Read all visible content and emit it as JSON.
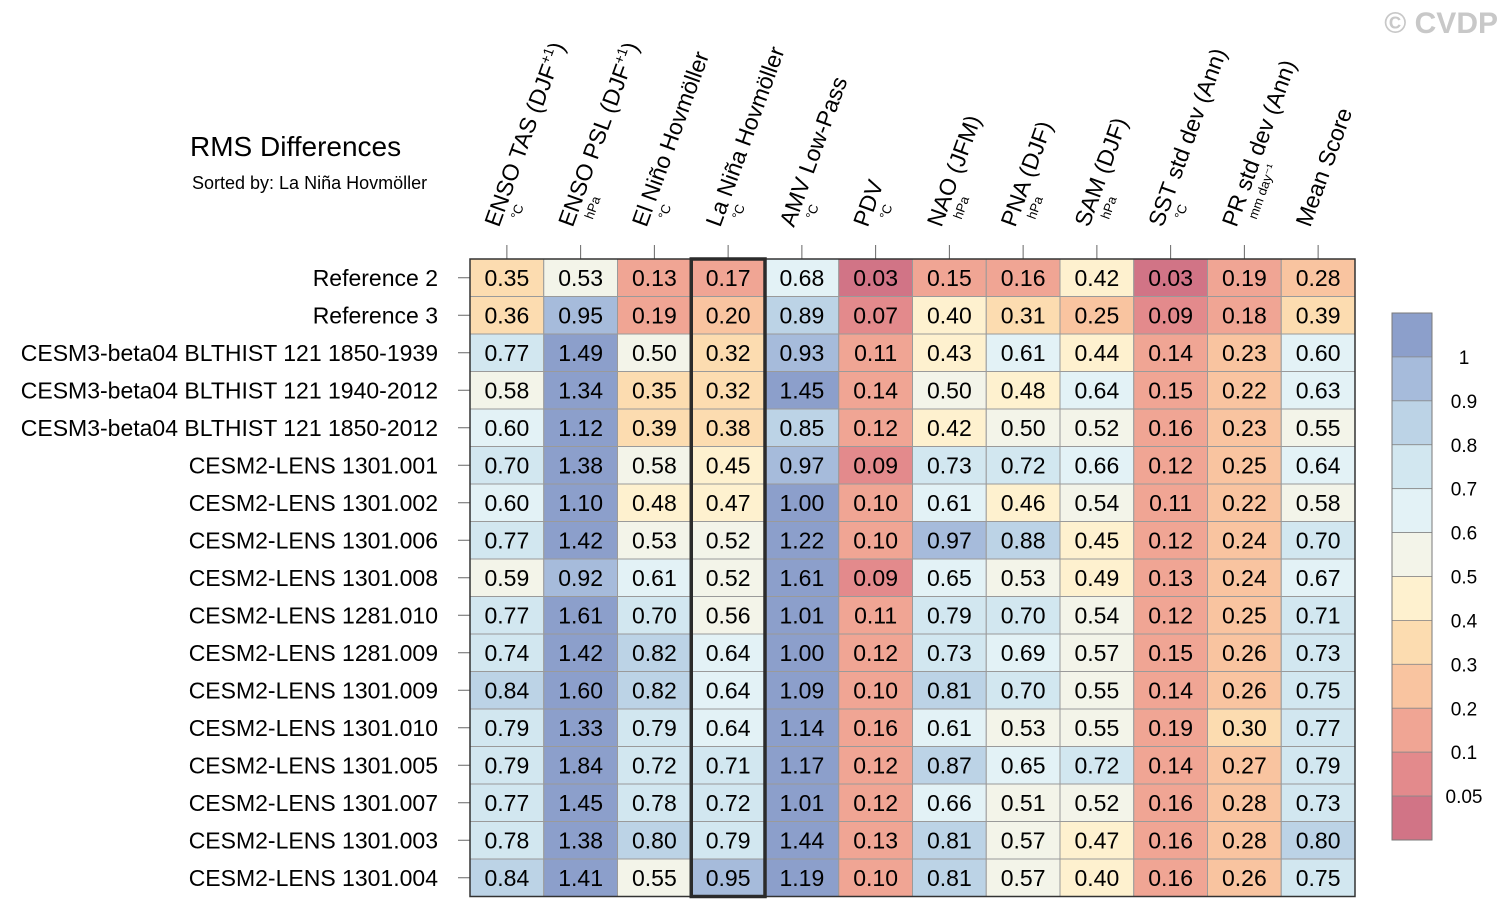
{
  "watermark": "© CVDP",
  "chart_data": {
    "type": "heatmap",
    "title": "RMS Differences",
    "subtitle": "Sorted by: La Niña Hovmöller",
    "highlight_column": 3,
    "columns": [
      {
        "name": "ENSO TAS (DJF",
        "sup": "+1",
        "close": ")",
        "unit": "°C"
      },
      {
        "name": "ENSO PSL (DJF",
        "sup": "+1",
        "close": ")",
        "unit": "hPa"
      },
      {
        "name": "El Niño Hovmöller",
        "sup": "",
        "close": "",
        "unit": "°C"
      },
      {
        "name": "La Niña Hovmöller",
        "sup": "",
        "close": "",
        "unit": "°C"
      },
      {
        "name": "AMV Low-Pass",
        "sup": "",
        "close": "",
        "unit": "°C"
      },
      {
        "name": "PDV",
        "sup": "",
        "close": "",
        "unit": "°C"
      },
      {
        "name": "NAO (JFM)",
        "sup": "",
        "close": "",
        "unit": "hPa"
      },
      {
        "name": "PNA (DJF)",
        "sup": "",
        "close": "",
        "unit": "hPa"
      },
      {
        "name": "SAM (DJF)",
        "sup": "",
        "close": "",
        "unit": "hPa"
      },
      {
        "name": "SST std dev (Ann)",
        "sup": "",
        "close": "",
        "unit": "°C"
      },
      {
        "name": "PR std dev (Ann)",
        "sup": "",
        "close": "",
        "unit": "mm day⁻¹"
      },
      {
        "name": "Mean Score",
        "sup": "",
        "close": "",
        "unit": ""
      }
    ],
    "rows": [
      {
        "label": "Reference 2",
        "values": [
          0.35,
          0.53,
          0.13,
          0.17,
          0.68,
          0.03,
          0.15,
          0.16,
          0.42,
          0.03,
          0.19,
          0.28
        ]
      },
      {
        "label": "Reference 3",
        "values": [
          0.36,
          0.95,
          0.19,
          0.2,
          0.89,
          0.07,
          0.4,
          0.31,
          0.25,
          0.09,
          0.18,
          0.39
        ]
      },
      {
        "label": "CESM3-beta04 BLTHIST 121 1850-1939",
        "values": [
          0.77,
          1.49,
          0.5,
          0.32,
          0.93,
          0.11,
          0.43,
          0.61,
          0.44,
          0.14,
          0.23,
          0.6
        ]
      },
      {
        "label": "CESM3-beta04 BLTHIST 121 1940-2012",
        "values": [
          0.58,
          1.34,
          0.35,
          0.32,
          1.45,
          0.14,
          0.5,
          0.48,
          0.64,
          0.15,
          0.22,
          0.63
        ]
      },
      {
        "label": "CESM3-beta04 BLTHIST 121 1850-2012",
        "values": [
          0.6,
          1.12,
          0.39,
          0.38,
          0.85,
          0.12,
          0.42,
          0.5,
          0.52,
          0.16,
          0.23,
          0.55
        ]
      },
      {
        "label": "CESM2-LENS 1301.001",
        "values": [
          0.7,
          1.38,
          0.58,
          0.45,
          0.97,
          0.09,
          0.73,
          0.72,
          0.66,
          0.12,
          0.25,
          0.64
        ]
      },
      {
        "label": "CESM2-LENS 1301.002",
        "values": [
          0.6,
          1.1,
          0.48,
          0.47,
          1.0,
          0.1,
          0.61,
          0.46,
          0.54,
          0.11,
          0.22,
          0.58
        ]
      },
      {
        "label": "CESM2-LENS 1301.006",
        "values": [
          0.77,
          1.42,
          0.53,
          0.52,
          1.22,
          0.1,
          0.97,
          0.88,
          0.45,
          0.12,
          0.24,
          0.7
        ]
      },
      {
        "label": "CESM2-LENS 1301.008",
        "values": [
          0.59,
          0.92,
          0.61,
          0.52,
          1.61,
          0.09,
          0.65,
          0.53,
          0.49,
          0.13,
          0.24,
          0.67
        ]
      },
      {
        "label": "CESM2-LENS 1281.010",
        "values": [
          0.77,
          1.61,
          0.7,
          0.56,
          1.01,
          0.11,
          0.79,
          0.7,
          0.54,
          0.12,
          0.25,
          0.71
        ]
      },
      {
        "label": "CESM2-LENS 1281.009",
        "values": [
          0.74,
          1.42,
          0.82,
          0.64,
          1.0,
          0.12,
          0.73,
          0.69,
          0.57,
          0.15,
          0.26,
          0.73
        ]
      },
      {
        "label": "CESM2-LENS 1301.009",
        "values": [
          0.84,
          1.6,
          0.82,
          0.64,
          1.09,
          0.1,
          0.81,
          0.7,
          0.55,
          0.14,
          0.26,
          0.75
        ]
      },
      {
        "label": "CESM2-LENS 1301.010",
        "values": [
          0.79,
          1.33,
          0.79,
          0.64,
          1.14,
          0.16,
          0.61,
          0.53,
          0.55,
          0.19,
          0.3,
          0.77
        ]
      },
      {
        "label": "CESM2-LENS 1301.005",
        "values": [
          0.79,
          1.84,
          0.72,
          0.71,
          1.17,
          0.12,
          0.87,
          0.65,
          0.72,
          0.14,
          0.27,
          0.79
        ]
      },
      {
        "label": "CESM2-LENS 1301.007",
        "values": [
          0.77,
          1.45,
          0.78,
          0.72,
          1.01,
          0.12,
          0.66,
          0.51,
          0.52,
          0.16,
          0.28,
          0.73
        ]
      },
      {
        "label": "CESM2-LENS 1301.003",
        "values": [
          0.78,
          1.38,
          0.8,
          0.79,
          1.44,
          0.13,
          0.81,
          0.57,
          0.47,
          0.16,
          0.28,
          0.8
        ]
      },
      {
        "label": "CESM2-LENS 1301.004",
        "values": [
          0.84,
          1.41,
          0.55,
          0.95,
          1.19,
          0.1,
          0.81,
          0.57,
          0.4,
          0.16,
          0.26,
          0.75
        ]
      }
    ],
    "colorbar": {
      "ticks": [
        "1",
        "0.9",
        "0.8",
        "0.7",
        "0.6",
        "0.5",
        "0.4",
        "0.3",
        "0.2",
        "0.1",
        "0.05"
      ],
      "thresholds": [
        1.0,
        0.9,
        0.8,
        0.7,
        0.6,
        0.5,
        0.4,
        0.3,
        0.2,
        0.1,
        0.05
      ],
      "colors": [
        "#8c9fcb",
        "#a6bbdb",
        "#bcd3e6",
        "#d2e7f0",
        "#e3f2f6",
        "#f3f4e9",
        "#fef1cf",
        "#fcdcb0",
        "#f9c4a0",
        "#f0a594",
        "#e38a8c",
        "#d17486"
      ]
    }
  }
}
